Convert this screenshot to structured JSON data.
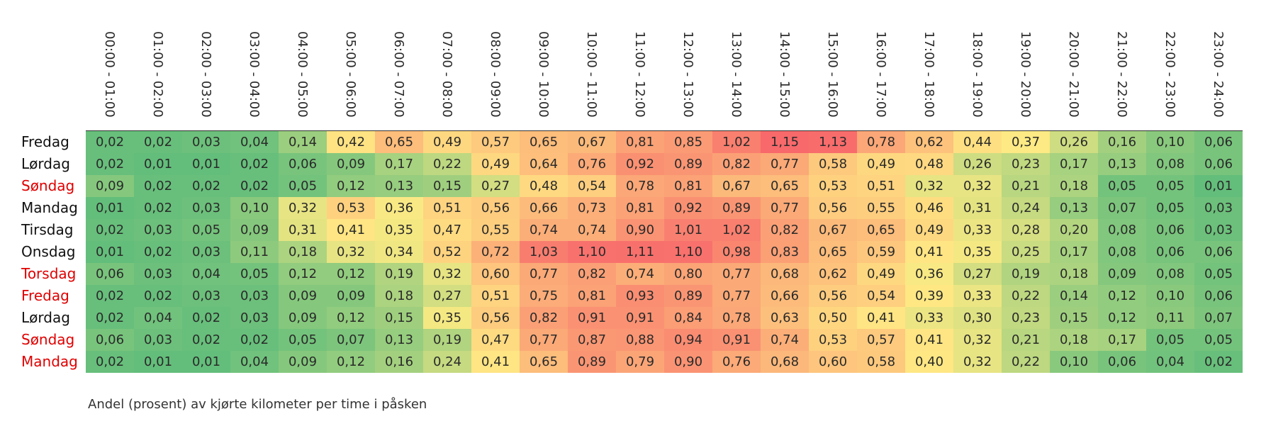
{
  "chart_data": {
    "type": "heatmap",
    "title": "",
    "caption": "Andel (prosent) av kjørte kilometer per time i påsken",
    "columns": [
      "00:00 - 01:00",
      "01:00 - 02:00",
      "02:00 - 03:00",
      "03:00 - 04:00",
      "04:00 - 05:00",
      "05:00 - 06:00",
      "06:00 - 07:00",
      "07:00 - 08:00",
      "08:00 - 09:00",
      "09:00 - 10:00",
      "10:00 - 11:00",
      "11:00 - 12:00",
      "12:00 - 13:00",
      "13:00 - 14:00",
      "14:00 - 15:00",
      "15:00 - 16:00",
      "16:00 - 17:00",
      "17:00 - 18:00",
      "18:00 - 19:00",
      "19:00 - 20:00",
      "20:00 - 21:00",
      "21:00 - 22:00",
      "22:00 - 23:00",
      "23:00 - 24:00"
    ],
    "rows": [
      {
        "label": "Fredag",
        "holiday": false,
        "values": [
          "0,02",
          "0,02",
          "0,03",
          "0,04",
          "0,14",
          "0,42",
          "0,65",
          "0,49",
          "0,57",
          "0,65",
          "0,67",
          "0,81",
          "0,85",
          "1,02",
          "1,15",
          "1,13",
          "0,78",
          "0,62",
          "0,44",
          "0,37",
          "0,26",
          "0,16",
          "0,10",
          "0,06"
        ]
      },
      {
        "label": "Lørdag",
        "holiday": false,
        "values": [
          "0,02",
          "0,01",
          "0,01",
          "0,02",
          "0,06",
          "0,09",
          "0,17",
          "0,22",
          "0,49",
          "0,64",
          "0,76",
          "0,92",
          "0,89",
          "0,82",
          "0,77",
          "0,58",
          "0,49",
          "0,48",
          "0,26",
          "0,23",
          "0,17",
          "0,13",
          "0,08",
          "0,06"
        ]
      },
      {
        "label": "Søndag",
        "holiday": true,
        "values": [
          "0,09",
          "0,02",
          "0,02",
          "0,02",
          "0,05",
          "0,12",
          "0,13",
          "0,15",
          "0,27",
          "0,48",
          "0,54",
          "0,78",
          "0,81",
          "0,67",
          "0,65",
          "0,53",
          "0,51",
          "0,32",
          "0,32",
          "0,21",
          "0,18",
          "0,05",
          "0,05",
          "0,01"
        ]
      },
      {
        "label": "Mandag",
        "holiday": false,
        "values": [
          "0,01",
          "0,02",
          "0,03",
          "0,10",
          "0,32",
          "0,53",
          "0,36",
          "0,51",
          "0,56",
          "0,66",
          "0,73",
          "0,81",
          "0,92",
          "0,89",
          "0,77",
          "0,56",
          "0,55",
          "0,46",
          "0,31",
          "0,24",
          "0,13",
          "0,07",
          "0,05",
          "0,03"
        ]
      },
      {
        "label": "Tirsdag",
        "holiday": false,
        "values": [
          "0,02",
          "0,03",
          "0,05",
          "0,09",
          "0,31",
          "0,41",
          "0,35",
          "0,47",
          "0,55",
          "0,74",
          "0,74",
          "0,90",
          "1,01",
          "1,02",
          "0,82",
          "0,67",
          "0,65",
          "0,49",
          "0,33",
          "0,28",
          "0,20",
          "0,08",
          "0,06",
          "0,03"
        ]
      },
      {
        "label": "Onsdag",
        "holiday": false,
        "values": [
          "0,01",
          "0,02",
          "0,03",
          "0,11",
          "0,18",
          "0,32",
          "0,34",
          "0,52",
          "0,72",
          "1,03",
          "1,10",
          "1,11",
          "1,10",
          "0,98",
          "0,83",
          "0,65",
          "0,59",
          "0,41",
          "0,35",
          "0,25",
          "0,17",
          "0,08",
          "0,06",
          "0,06"
        ]
      },
      {
        "label": "Torsdag",
        "holiday": true,
        "values": [
          "0,06",
          "0,03",
          "0,04",
          "0,05",
          "0,12",
          "0,12",
          "0,19",
          "0,32",
          "0,60",
          "0,77",
          "0,82",
          "0,74",
          "0,80",
          "0,77",
          "0,68",
          "0,62",
          "0,49",
          "0,36",
          "0,27",
          "0,19",
          "0,18",
          "0,09",
          "0,08",
          "0,05"
        ]
      },
      {
        "label": "Fredag",
        "holiday": true,
        "values": [
          "0,02",
          "0,02",
          "0,03",
          "0,03",
          "0,09",
          "0,09",
          "0,18",
          "0,27",
          "0,51",
          "0,75",
          "0,81",
          "0,93",
          "0,89",
          "0,77",
          "0,66",
          "0,56",
          "0,54",
          "0,39",
          "0,33",
          "0,22",
          "0,14",
          "0,12",
          "0,10",
          "0,06"
        ]
      },
      {
        "label": "Lørdag",
        "holiday": false,
        "values": [
          "0,02",
          "0,04",
          "0,02",
          "0,03",
          "0,09",
          "0,12",
          "0,15",
          "0,35",
          "0,56",
          "0,82",
          "0,91",
          "0,91",
          "0,84",
          "0,78",
          "0,63",
          "0,50",
          "0,41",
          "0,33",
          "0,30",
          "0,23",
          "0,15",
          "0,12",
          "0,11",
          "0,07"
        ]
      },
      {
        "label": "Søndag",
        "holiday": true,
        "values": [
          "0,06",
          "0,03",
          "0,02",
          "0,02",
          "0,05",
          "0,07",
          "0,13",
          "0,19",
          "0,47",
          "0,77",
          "0,87",
          "0,88",
          "0,94",
          "0,91",
          "0,74",
          "0,53",
          "0,57",
          "0,41",
          "0,32",
          "0,21",
          "0,18",
          "0,17",
          "0,05",
          "0,05"
        ]
      },
      {
        "label": "Mandag",
        "holiday": true,
        "values": [
          "0,02",
          "0,01",
          "0,01",
          "0,04",
          "0,09",
          "0,12",
          "0,16",
          "0,24",
          "0,41",
          "0,65",
          "0,89",
          "0,79",
          "0,90",
          "0,76",
          "0,68",
          "0,60",
          "0,58",
          "0,40",
          "0,32",
          "0,22",
          "0,10",
          "0,06",
          "0,04",
          "0,02"
        ]
      }
    ],
    "color_scale": {
      "low": "#63be7b",
      "mid": "#ffeb84",
      "high": "#f8696b",
      "min": 0.01,
      "mid_value": 0.375,
      "max": 1.15
    },
    "holiday_label_color": "#e00000",
    "label_color": "#111111"
  }
}
